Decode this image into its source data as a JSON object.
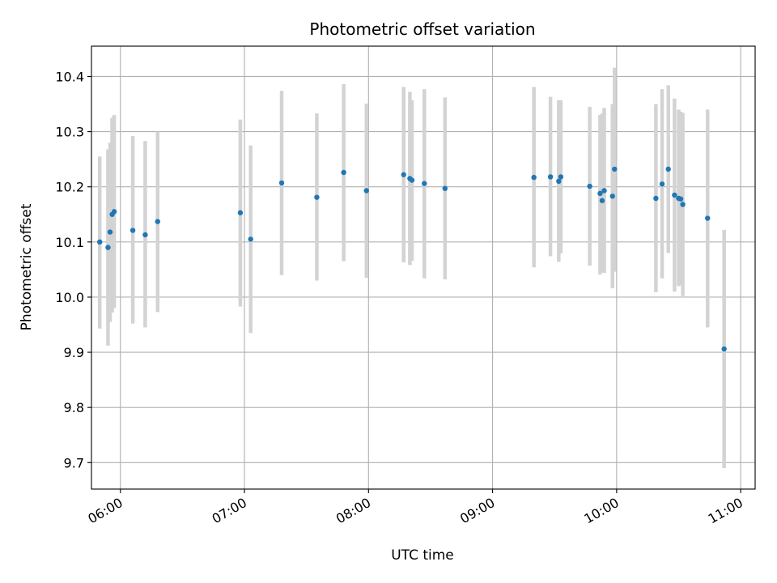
{
  "chart_data": {
    "type": "scatter",
    "title": "Photometric offset variation",
    "xlabel": "UTC time",
    "ylabel": "Photometric offset",
    "x_unit": "UTC time (HH:MM)",
    "xlim": [
      "05:46",
      "11:07"
    ],
    "ylim": [
      9.652,
      10.455
    ],
    "x_ticks": [
      "06:00",
      "07:00",
      "08:00",
      "09:00",
      "10:00",
      "11:00"
    ],
    "y_ticks": [
      "9.7",
      "9.8",
      "9.9",
      "10.0",
      "10.1",
      "10.2",
      "10.3",
      "10.4"
    ],
    "grid": true,
    "marker_color": "#1f77b4",
    "errorbar_color": "#d3d3d3",
    "series": [
      {
        "points": [
          {
            "x": "05:50",
            "y": 10.1,
            "ylow": 9.943,
            "yhigh": 10.255
          },
          {
            "x": "05:54",
            "y": 10.09,
            "ylow": 9.912,
            "yhigh": 10.268
          },
          {
            "x": "05:55",
            "y": 10.118,
            "ylow": 9.955,
            "yhigh": 10.28
          },
          {
            "x": "05:56",
            "y": 10.15,
            "ylow": 9.972,
            "yhigh": 10.325
          },
          {
            "x": "05:57",
            "y": 10.155,
            "ylow": 9.98,
            "yhigh": 10.33
          },
          {
            "x": "06:06",
            "y": 10.121,
            "ylow": 9.952,
            "yhigh": 10.292
          },
          {
            "x": "06:12",
            "y": 10.113,
            "ylow": 9.945,
            "yhigh": 10.283
          },
          {
            "x": "06:18",
            "y": 10.137,
            "ylow": 9.973,
            "yhigh": 10.3
          },
          {
            "x": "06:58",
            "y": 10.153,
            "ylow": 9.983,
            "yhigh": 10.322
          },
          {
            "x": "07:03",
            "y": 10.105,
            "ylow": 9.935,
            "yhigh": 10.275
          },
          {
            "x": "07:18",
            "y": 10.207,
            "ylow": 10.04,
            "yhigh": 10.374
          },
          {
            "x": "07:35",
            "y": 10.181,
            "ylow": 10.03,
            "yhigh": 10.333
          },
          {
            "x": "07:48",
            "y": 10.226,
            "ylow": 10.065,
            "yhigh": 10.386
          },
          {
            "x": "07:59",
            "y": 10.193,
            "ylow": 10.035,
            "yhigh": 10.351
          },
          {
            "x": "08:17",
            "y": 10.222,
            "ylow": 10.063,
            "yhigh": 10.381
          },
          {
            "x": "08:20",
            "y": 10.215,
            "ylow": 10.058,
            "yhigh": 10.372
          },
          {
            "x": "08:21",
            "y": 10.212,
            "ylow": 10.066,
            "yhigh": 10.357
          },
          {
            "x": "08:27",
            "y": 10.206,
            "ylow": 10.034,
            "yhigh": 10.377
          },
          {
            "x": "08:37",
            "y": 10.197,
            "ylow": 10.032,
            "yhigh": 10.362
          },
          {
            "x": "09:20",
            "y": 10.217,
            "ylow": 10.054,
            "yhigh": 10.381
          },
          {
            "x": "09:28",
            "y": 10.218,
            "ylow": 10.074,
            "yhigh": 10.363
          },
          {
            "x": "09:32",
            "y": 10.21,
            "ylow": 10.064,
            "yhigh": 10.357
          },
          {
            "x": "09:33",
            "y": 10.218,
            "ylow": 10.079,
            "yhigh": 10.357
          },
          {
            "x": "09:47",
            "y": 10.201,
            "ylow": 10.057,
            "yhigh": 10.345
          },
          {
            "x": "09:52",
            "y": 10.188,
            "ylow": 10.041,
            "yhigh": 10.33
          },
          {
            "x": "09:53",
            "y": 10.175,
            "ylow": 10.045,
            "yhigh": 10.333
          },
          {
            "x": "09:54",
            "y": 10.193,
            "ylow": 10.044,
            "yhigh": 10.343
          },
          {
            "x": "09:58",
            "y": 10.183,
            "ylow": 10.016,
            "yhigh": 10.35
          },
          {
            "x": "09:59",
            "y": 10.232,
            "ylow": 10.046,
            "yhigh": 10.416
          },
          {
            "x": "10:19",
            "y": 10.179,
            "ylow": 10.009,
            "yhigh": 10.35
          },
          {
            "x": "10:22",
            "y": 10.205,
            "ylow": 10.034,
            "yhigh": 10.377
          },
          {
            "x": "10:25",
            "y": 10.232,
            "ylow": 10.08,
            "yhigh": 10.384
          },
          {
            "x": "10:28",
            "y": 10.185,
            "ylow": 10.01,
            "yhigh": 10.36
          },
          {
            "x": "10:30",
            "y": 10.179,
            "ylow": 10.02,
            "yhigh": 10.34
          },
          {
            "x": "10:31",
            "y": 10.178,
            "ylow": 10.022,
            "yhigh": 10.336
          },
          {
            "x": "10:32",
            "y": 10.168,
            "ylow": 10.002,
            "yhigh": 10.334
          },
          {
            "x": "10:44",
            "y": 10.143,
            "ylow": 9.945,
            "yhigh": 10.34
          },
          {
            "x": "10:52",
            "y": 9.906,
            "ylow": 9.69,
            "yhigh": 10.122
          }
        ]
      }
    ]
  }
}
